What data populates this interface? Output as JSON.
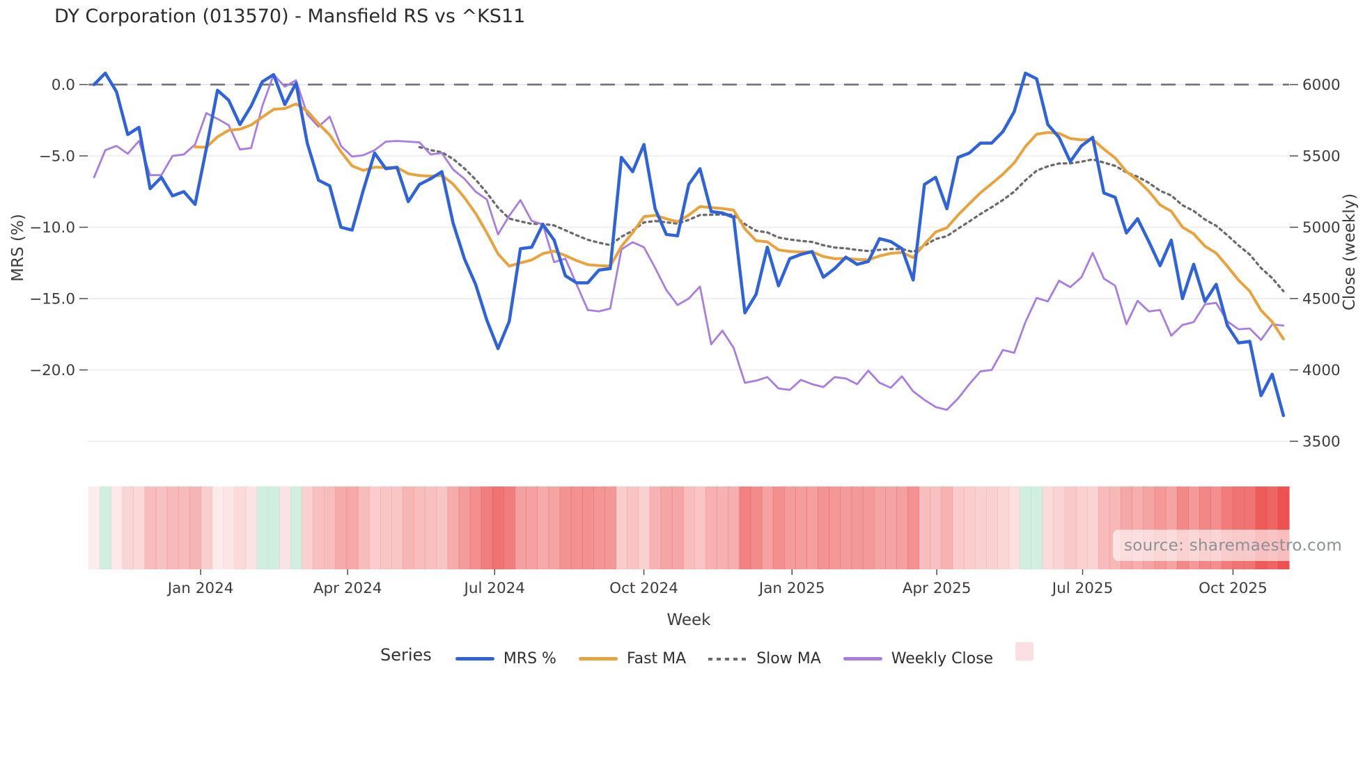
{
  "title": "DY Corporation (013570) - Mansfield RS vs ^KS11",
  "watermark": "source: sharemaestro.com",
  "legend": {
    "title": "Series",
    "entries": [
      {
        "label": "MRS %",
        "swatch": "line",
        "color": "#2e63d9"
      },
      {
        "label": "Fast MA",
        "swatch": "line",
        "color": "#e8a33c"
      },
      {
        "label": "Slow MA",
        "swatch": "dotted-line",
        "color": "#6b6b6b"
      },
      {
        "label": "Weekly Close",
        "swatch": "line",
        "color": "#a87ddf"
      },
      {
        "label": "",
        "swatch": "square",
        "color": "#fadfe3"
      }
    ]
  },
  "chart_data": {
    "type": "line",
    "title": "DY Corporation (013570) - Mansfield RS vs ^KS11",
    "xlabel": "Week",
    "ylabel_left": "MRS (%)",
    "ylabel_right": "Close (weekly)",
    "n_weeks": 107,
    "zero_reference_line": 0.0,
    "grid": true,
    "x_ticks": [
      {
        "label": "Jan 2024",
        "week": 9.5
      },
      {
        "label": "Apr 2024",
        "week": 22.6
      },
      {
        "label": "Jul 2024",
        "week": 35.7
      },
      {
        "label": "Oct 2024",
        "week": 49.0
      },
      {
        "label": "Jan 2025",
        "week": 62.2
      },
      {
        "label": "Apr 2025",
        "week": 75.1
      },
      {
        "label": "Jul 2025",
        "week": 88.1
      },
      {
        "label": "Oct 2025",
        "week": 101.5
      }
    ],
    "y_left_ticks": [
      {
        "label": "0.0",
        "value": 0
      },
      {
        "label": "−5.0",
        "value": -5
      },
      {
        "label": "−10.0",
        "value": -10
      },
      {
        "label": "−15.0",
        "value": -15
      },
      {
        "label": "−20.0",
        "value": -20
      }
    ],
    "y_right_ticks": [
      {
        "label": "6000",
        "value": 6000
      },
      {
        "label": "5500",
        "value": 5500
      },
      {
        "label": "5000",
        "value": 5000
      },
      {
        "label": "4500",
        "value": 4500
      },
      {
        "label": "4000",
        "value": 4000
      },
      {
        "label": "3500",
        "value": 3500
      }
    ],
    "y_left_range": [
      -24.5,
      1.5
    ],
    "y_right_range": [
      3500,
      6100
    ],
    "series": [
      {
        "name": "MRS %",
        "axis": "left",
        "color": "#2e63d9",
        "width": 4.5,
        "values": [
          0.0,
          0.8,
          -0.5,
          -3.5,
          -3.0,
          -7.3,
          -6.5,
          -7.8,
          -7.5,
          -8.4,
          -4.5,
          -0.4,
          -1.1,
          -2.8,
          -1.5,
          0.2,
          0.7,
          -1.4,
          0.1,
          -4.1,
          -6.7,
          -7.1,
          -10.0,
          -10.2,
          -7.4,
          -4.8,
          -5.9,
          -5.8,
          -8.2,
          -7.0,
          -6.6,
          -6.1,
          -9.7,
          -12.2,
          -14.0,
          -16.5,
          -18.5,
          -16.6,
          -11.5,
          -11.4,
          -9.8,
          -10.9,
          -13.4,
          -13.9,
          -13.9,
          -13.0,
          -12.9,
          -5.1,
          -6.1,
          -4.2,
          -8.7,
          -10.5,
          -10.6,
          -7.0,
          -5.9,
          -8.9,
          -9.0,
          -9.3,
          -16.0,
          -14.7,
          -11.4,
          -14.1,
          -12.2,
          -11.9,
          -11.7,
          -13.5,
          -12.9,
          -12.1,
          -12.6,
          -12.4,
          -10.8,
          -11.0,
          -11.5,
          -13.7,
          -7.0,
          -6.5,
          -8.7,
          -5.1,
          -4.8,
          -4.1,
          -4.1,
          -3.3,
          -1.9,
          0.8,
          0.4,
          -2.8,
          -3.7,
          -5.4,
          -4.3,
          -3.7,
          -7.6,
          -7.9,
          -10.4,
          -9.4,
          -11.0,
          -12.7,
          -10.9,
          -15.0,
          -12.6,
          -15.2,
          -14.0,
          -16.9,
          -18.1,
          -18.0,
          -21.8,
          -20.3,
          -23.2
        ]
      },
      {
        "name": "Fast MA",
        "axis": "left",
        "color": "#e8a33c",
        "width": 4.0,
        "derived": {
          "method": "ema",
          "source": "MRS %",
          "span": 10,
          "seed_window": 10,
          "start_index": 9
        }
      },
      {
        "name": "Slow MA",
        "axis": "left",
        "color": "#6b6b6b",
        "width": 3.3,
        "dash": "dotted",
        "derived": {
          "method": "ema",
          "source": "MRS %",
          "span": 20,
          "seed_window": 30,
          "start_index": 29
        }
      },
      {
        "name": "Weekly Close",
        "axis": "right",
        "color": "#a87ddf",
        "width": 2.8,
        "values": [
          5350,
          5540,
          5570,
          5515,
          5605,
          5365,
          5365,
          5500,
          5510,
          5580,
          5800,
          5760,
          5715,
          5545,
          5555,
          5850,
          6070,
          5985,
          6030,
          5790,
          5705,
          5775,
          5570,
          5495,
          5505,
          5540,
          5600,
          5605,
          5600,
          5595,
          5510,
          5520,
          5405,
          5340,
          5250,
          5195,
          4950,
          5080,
          5190,
          5045,
          5020,
          4755,
          4780,
          4600,
          4420,
          4410,
          4430,
          4845,
          4895,
          4860,
          4715,
          4560,
          4455,
          4500,
          4585,
          4180,
          4275,
          4155,
          3910,
          3925,
          3950,
          3870,
          3860,
          3930,
          3900,
          3880,
          3950,
          3940,
          3900,
          3995,
          3910,
          3875,
          3955,
          3850,
          3790,
          3740,
          3720,
          3800,
          3900,
          3990,
          4000,
          4140,
          4120,
          4335,
          4505,
          4480,
          4625,
          4580,
          4650,
          4820,
          4640,
          4590,
          4320,
          4485,
          4410,
          4420,
          4240,
          4315,
          4335,
          4460,
          4470,
          4340,
          4285,
          4290,
          4210,
          4320,
          4310
        ]
      }
    ],
    "heatmap_strip": {
      "source": "MRS %",
      "negative_color_rgb": "235,70,70",
      "positive_color_rgb": "110,205,160",
      "positive_alpha": 0.32,
      "alpha_base": 0.1,
      "alpha_per_unit": 0.036
    }
  }
}
